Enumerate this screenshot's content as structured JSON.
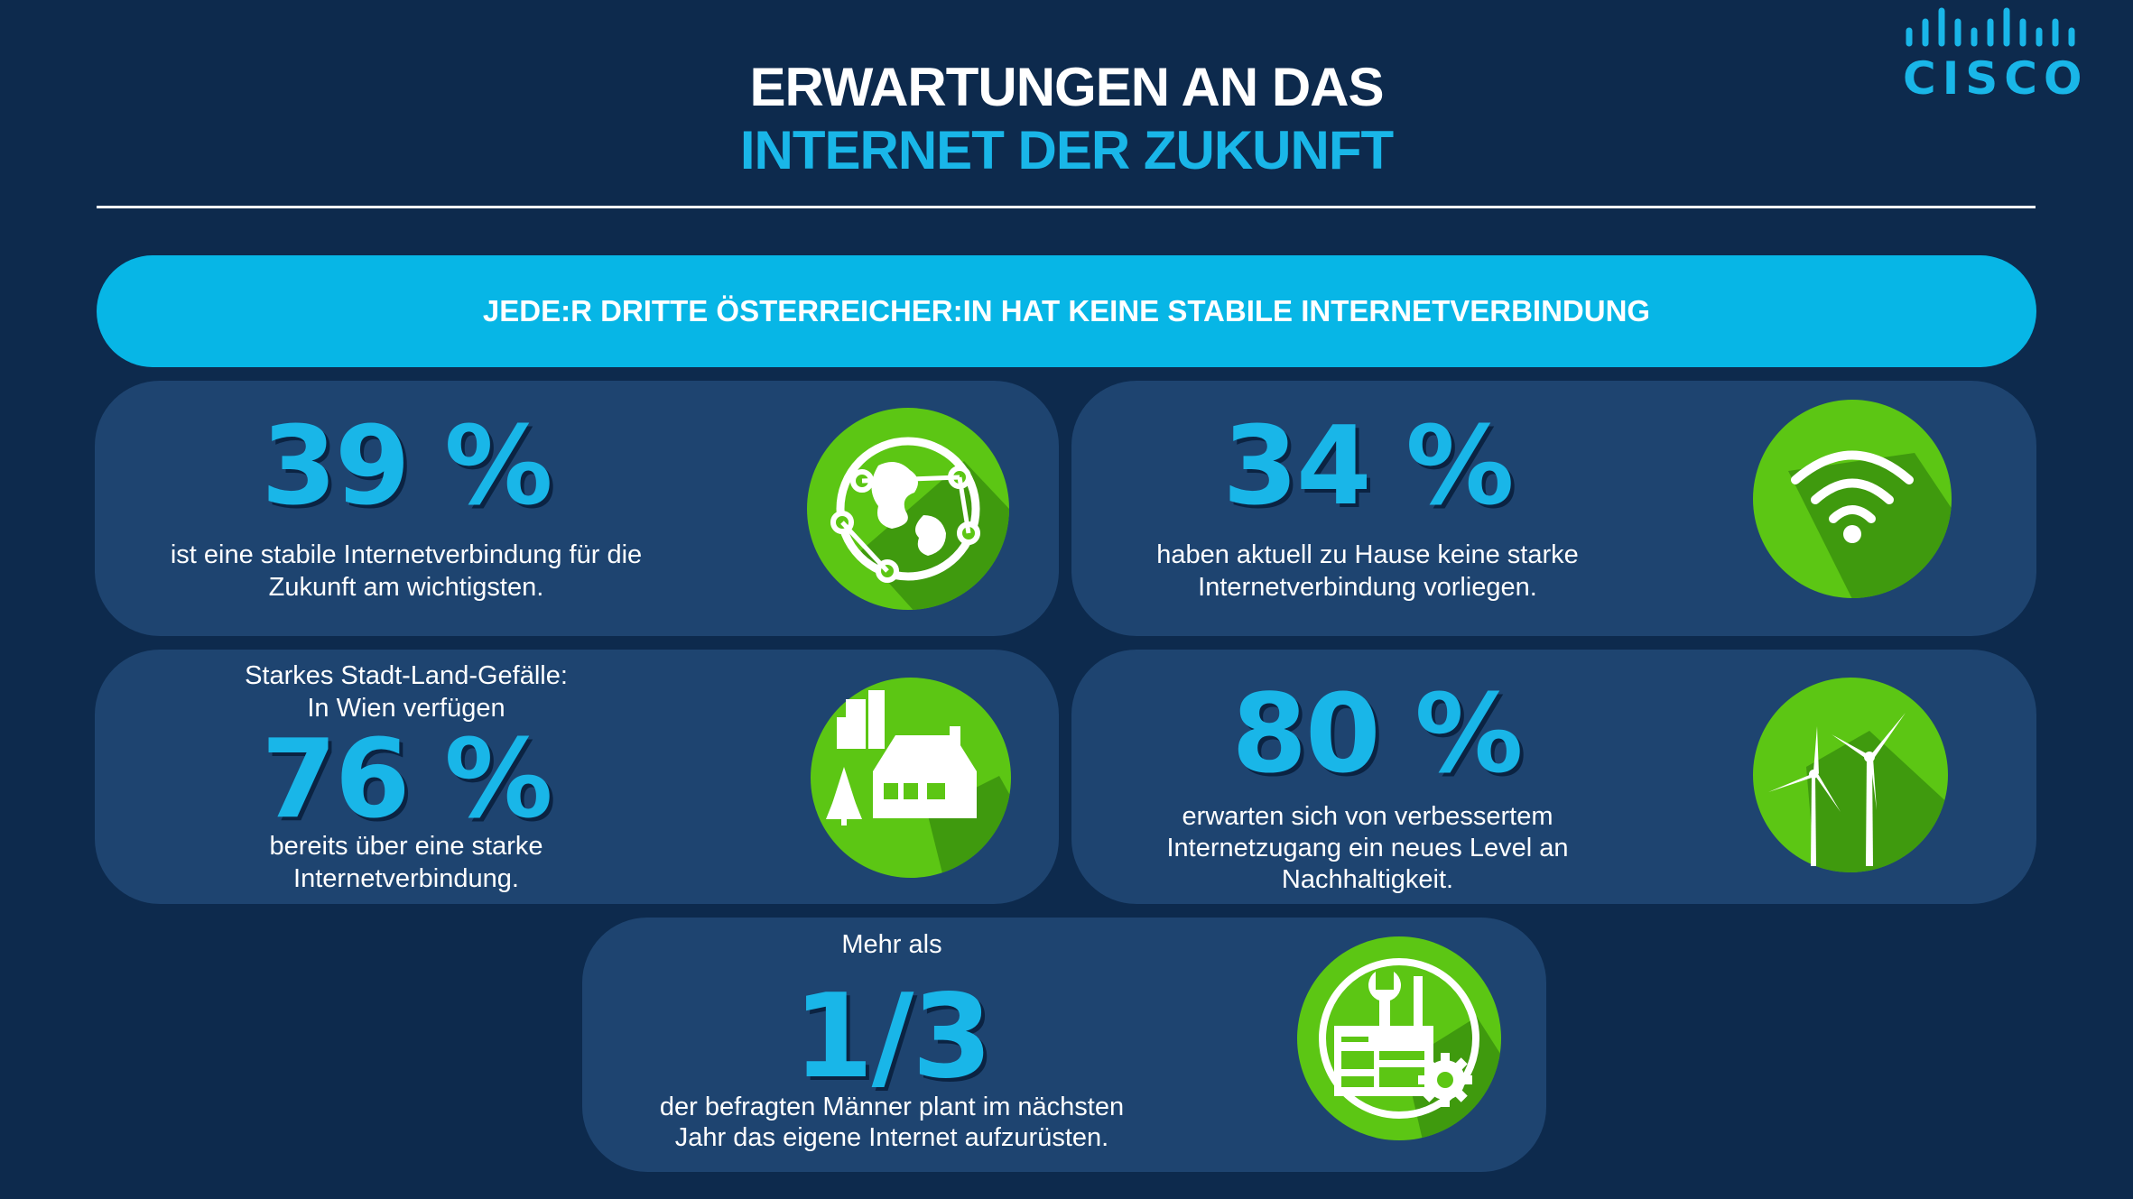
{
  "header": {
    "title_line1": "ERWARTUNGEN AN DAS",
    "title_line2": "INTERNET DER ZUKUNFT",
    "logo_text": "CISCO"
  },
  "banner": {
    "text": "JEDE:R DRITTE ÖSTERREICHER:IN HAT KEINE STABILE INTERNETVERBINDUNG"
  },
  "stats": {
    "s1": {
      "value": "39 %",
      "line1": "ist eine stabile Internetverbindung für die",
      "line2": "Zukunft am wichtigsten.",
      "icon": "globe-network-icon"
    },
    "s2": {
      "value": "34 %",
      "line1": "haben aktuell zu Hause keine starke",
      "line2": "Internetverbindung vorliegen.",
      "icon": "wifi-icon"
    },
    "s3": {
      "pre1": "Starkes Stadt-Land-Gefälle:",
      "pre2": "In Wien verfügen",
      "value": "76 %",
      "line1": "bereits über eine starke",
      "line2": "Internetverbindung.",
      "icon": "house-city-icon"
    },
    "s4": {
      "value": "80 %",
      "line1": "erwarten sich von verbessertem",
      "line2": "Internetzugang ein neues Level an",
      "line3": "Nachhaltigkeit.",
      "icon": "wind-turbine-icon"
    },
    "s5": {
      "pre1": "Mehr als",
      "value": "1/3",
      "line1": "der befragten Männer plant im nächsten",
      "line2": "Jahr das eigene Internet aufzurüsten.",
      "icon": "tools-gear-icon"
    }
  },
  "colors": {
    "background": "#0d2a4d",
    "card": "#1e4470",
    "accent_blue": "#19b6e8",
    "banner": "#07b6e6",
    "icon_green": "#5cc614"
  }
}
